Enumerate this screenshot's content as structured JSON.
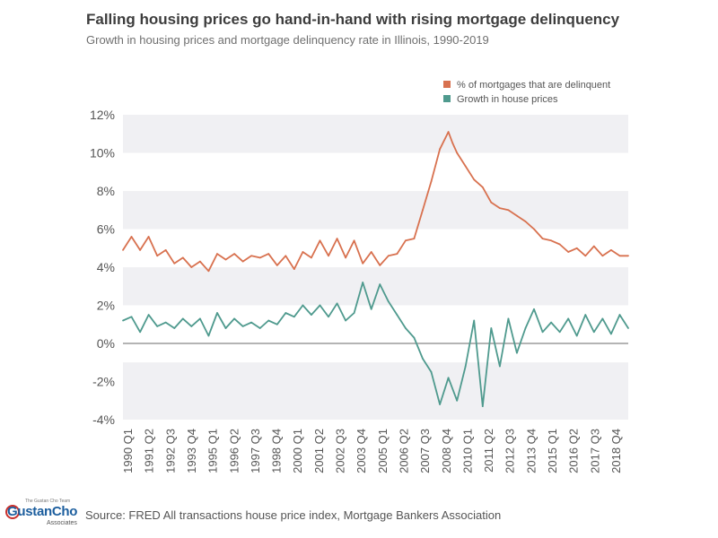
{
  "header": {
    "title": "Falling housing prices go hand-in-hand with rising mortgage delinquency",
    "subtitle": "Growth in housing prices and mortgage delinquency rate in Illinois, 1990-2019"
  },
  "footer": {
    "source": "Source:  FRED All transactions house price index, Mortgage Bankers Association"
  },
  "logo": {
    "top_text": "The Gustan Cho Team",
    "main_text": "GustanCho",
    "sub_text": "Associates"
  },
  "colors": {
    "delinquent": "#d8714f",
    "growth": "#4f9a8e",
    "band": "#f0f0f3",
    "zero_line": "#888888",
    "axis_text": "#555555"
  },
  "chart_data": {
    "type": "line",
    "title": "Falling housing prices go hand-in-hand with rising mortgage delinquency",
    "subtitle": "Growth in housing prices and mortgage delinquency rate in Illinois, 1990-2019",
    "xlabel": "",
    "ylabel": "",
    "ylim": [
      -4,
      12
    ],
    "y_ticks": [
      -4,
      -2,
      0,
      2,
      4,
      6,
      8,
      10,
      12
    ],
    "y_tick_labels": [
      "-4%",
      "-2%",
      "0%",
      "2%",
      "4%",
      "6%",
      "8%",
      "10%",
      "12%"
    ],
    "x_tick_labels": [
      "1990 Q1",
      "1991 Q2",
      "1992 Q3",
      "1993 Q4",
      "1995 Q1",
      "1996 Q2",
      "1997 Q3",
      "1998 Q4",
      "2000 Q1",
      "2001 Q2",
      "2002 Q3",
      "2003 Q4",
      "2005 Q1",
      "2006 Q2",
      "2007 Q3",
      "2008 Q4",
      "2010 Q1",
      "2011 Q2",
      "2012 Q3",
      "2013 Q4",
      "2015 Q1",
      "2016 Q2",
      "2017 Q3",
      "2018 Q4"
    ],
    "grid": false,
    "legend_position": "top-right",
    "series": [
      {
        "name": "% of mortgages that are delinquent",
        "color": "#d8714f",
        "x": [
          1990.0,
          1990.5,
          1991.0,
          1991.5,
          1992.0,
          1992.5,
          1993.0,
          1993.5,
          1994.0,
          1994.5,
          1995.0,
          1995.5,
          1996.0,
          1996.5,
          1997.0,
          1997.5,
          1998.0,
          1998.5,
          1999.0,
          1999.5,
          2000.0,
          2000.5,
          2001.0,
          2001.5,
          2002.0,
          2002.5,
          2003.0,
          2003.5,
          2004.0,
          2004.5,
          2005.0,
          2005.5,
          2006.0,
          2006.5,
          2007.0,
          2007.5,
          2008.0,
          2008.5,
          2009.0,
          2009.25,
          2009.5,
          2010.0,
          2010.5,
          2011.0,
          2011.5,
          2012.0,
          2012.5,
          2013.0,
          2013.5,
          2014.0,
          2014.5,
          2015.0,
          2015.5,
          2016.0,
          2016.5,
          2017.0,
          2017.5,
          2018.0,
          2018.5,
          2019.0,
          2019.5
        ],
        "values": [
          4.9,
          5.6,
          4.9,
          5.6,
          4.6,
          4.9,
          4.2,
          4.5,
          4.0,
          4.3,
          3.8,
          4.7,
          4.4,
          4.7,
          4.3,
          4.6,
          4.5,
          4.7,
          4.1,
          4.6,
          3.9,
          4.8,
          4.5,
          5.4,
          4.6,
          5.5,
          4.5,
          5.4,
          4.2,
          4.8,
          4.1,
          4.6,
          4.7,
          5.4,
          5.5,
          7.0,
          8.5,
          10.2,
          11.1,
          10.5,
          10.0,
          9.3,
          8.6,
          8.2,
          7.4,
          7.1,
          7.0,
          6.7,
          6.4,
          6.0,
          5.5,
          5.4,
          5.2,
          4.8,
          5.0,
          4.6,
          5.1,
          4.6,
          4.9,
          4.6,
          4.6
        ]
      },
      {
        "name": "Growth in house prices",
        "color": "#4f9a8e",
        "x": [
          1990.0,
          1990.5,
          1991.0,
          1991.5,
          1992.0,
          1992.5,
          1993.0,
          1993.5,
          1994.0,
          1994.5,
          1995.0,
          1995.5,
          1996.0,
          1996.5,
          1997.0,
          1997.5,
          1998.0,
          1998.5,
          1999.0,
          1999.5,
          2000.0,
          2000.5,
          2001.0,
          2001.5,
          2002.0,
          2002.5,
          2003.0,
          2003.5,
          2004.0,
          2004.5,
          2005.0,
          2005.5,
          2006.0,
          2006.5,
          2007.0,
          2007.5,
          2008.0,
          2008.5,
          2009.0,
          2009.5,
          2010.0,
          2010.5,
          2011.0,
          2011.5,
          2012.0,
          2012.5,
          2013.0,
          2013.5,
          2014.0,
          2014.5,
          2015.0,
          2015.5,
          2016.0,
          2016.5,
          2017.0,
          2017.5,
          2018.0,
          2018.5,
          2019.0,
          2019.5
        ],
        "values": [
          1.2,
          1.4,
          0.6,
          1.5,
          0.9,
          1.1,
          0.8,
          1.3,
          0.9,
          1.3,
          0.4,
          1.6,
          0.8,
          1.3,
          0.9,
          1.1,
          0.8,
          1.2,
          1.0,
          1.6,
          1.4,
          2.0,
          1.5,
          2.0,
          1.4,
          2.1,
          1.2,
          1.6,
          3.2,
          1.8,
          3.1,
          2.2,
          1.5,
          0.8,
          0.3,
          -0.8,
          -1.5,
          -3.2,
          -1.8,
          -3.0,
          -1.2,
          1.2,
          -3.3,
          0.8,
          -1.2,
          1.3,
          -0.5,
          0.8,
          1.8,
          0.6,
          1.1,
          0.6,
          1.3,
          0.4,
          1.5,
          0.6,
          1.3,
          0.5,
          1.5,
          0.8
        ]
      }
    ]
  }
}
